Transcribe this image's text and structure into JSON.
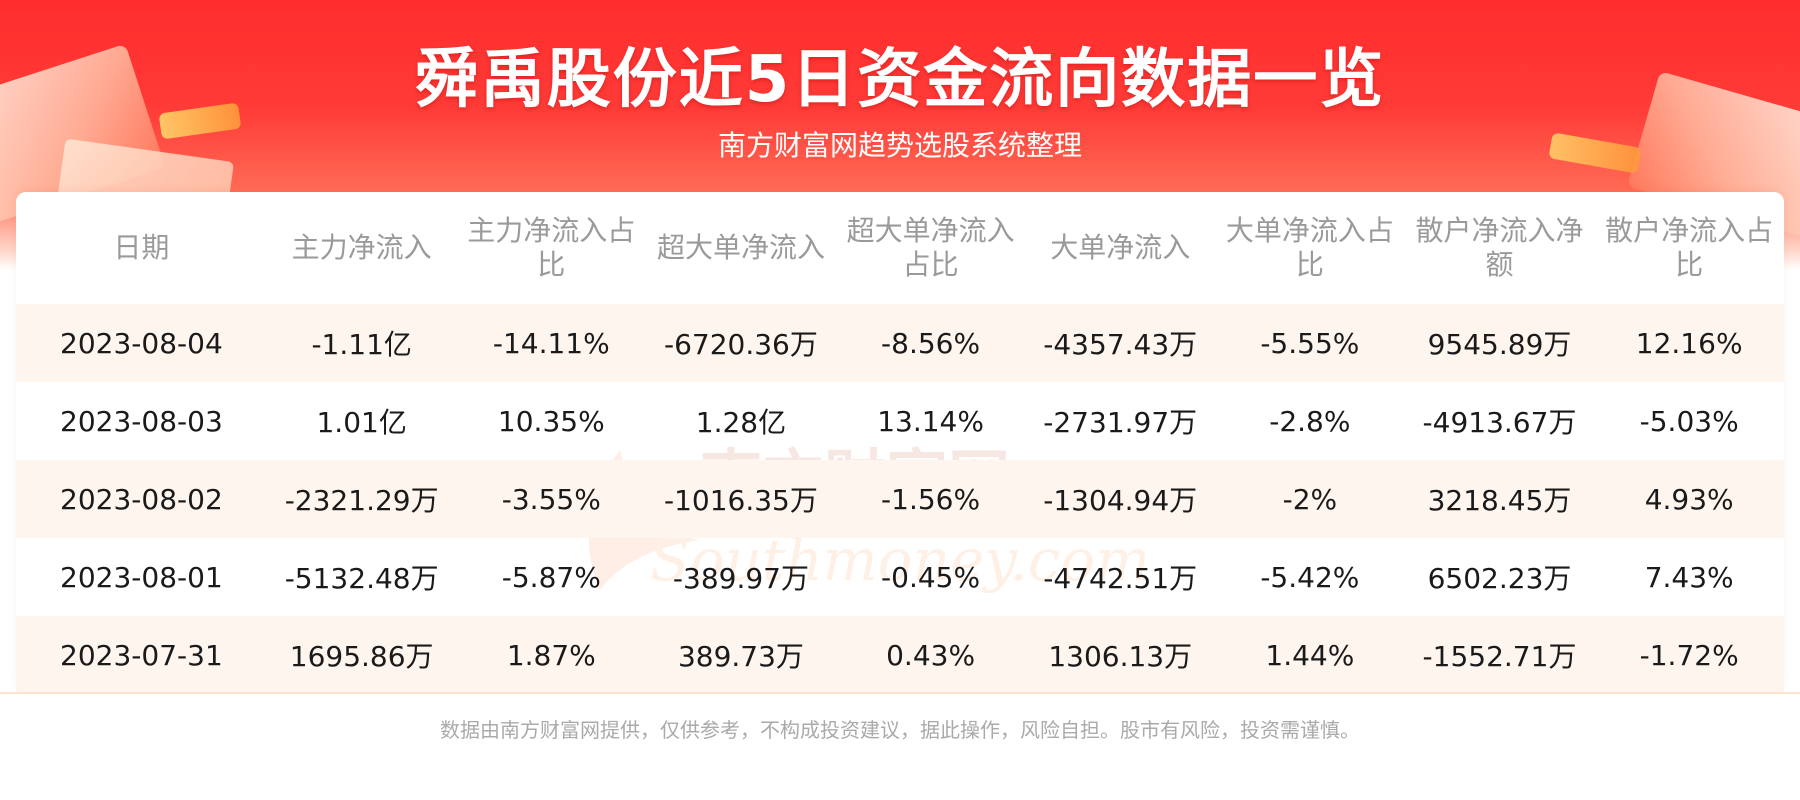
{
  "header": {
    "title": "舜禹股份近5日资金流向数据一览",
    "subtitle": "南方财富网趋势选股系统整理"
  },
  "watermark": {
    "chinese": "南方财富网",
    "latin": "Southmoney.com"
  },
  "table": {
    "columns": [
      "日期",
      "主力净流入",
      "主力净流入占比",
      "超大单净流入",
      "超大单净流入占比",
      "大单净流入",
      "大单净流入占比",
      "散户净流入净额",
      "散户净流入占比"
    ],
    "rows": [
      [
        "2023-08-04",
        "-1.11亿",
        "-14.11%",
        "-6720.36万",
        "-8.56%",
        "-4357.43万",
        "-5.55%",
        "9545.89万",
        "12.16%"
      ],
      [
        "2023-08-03",
        "1.01亿",
        "10.35%",
        "1.28亿",
        "13.14%",
        "-2731.97万",
        "-2.8%",
        "-4913.67万",
        "-5.03%"
      ],
      [
        "2023-08-02",
        "-2321.29万",
        "-3.55%",
        "-1016.35万",
        "-1.56%",
        "-1304.94万",
        "-2%",
        "3218.45万",
        "4.93%"
      ],
      [
        "2023-08-01",
        "-5132.48万",
        "-5.87%",
        "-389.97万",
        "-0.45%",
        "-4742.51万",
        "-5.42%",
        "6502.23万",
        "7.43%"
      ],
      [
        "2023-07-31",
        "1695.86万",
        "1.87%",
        "389.73万",
        "0.43%",
        "1306.13万",
        "1.44%",
        "-1552.71万",
        "-1.72%"
      ]
    ]
  },
  "footer": {
    "disclaimer": "数据由南方财富网提供，仅供参考，不构成投资建议，据此操作，风险自担。股市有风险，投资需谨慎。"
  },
  "colors": {
    "banner_red": "#ff2d2d",
    "row_stripe": "#fff5ef",
    "header_text": "#9a9a9a"
  }
}
